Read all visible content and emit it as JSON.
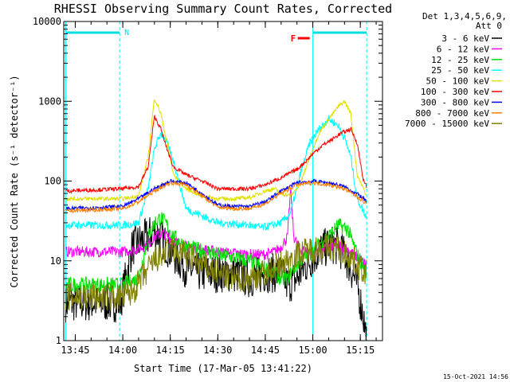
{
  "chart_data": {
    "type": "line",
    "title": "RHESSI Observing Summary Count Rates, Corrected",
    "xlabel": "Start Time (17-Mar-05 13:41:22)",
    "ylabel": "Corrected Count Rate (s⁻¹ detector⁻¹)",
    "yscale": "log",
    "ylim": [
      1,
      10000
    ],
    "y_ticks": [
      {
        "v": 1,
        "label": "1"
      },
      {
        "v": 10,
        "label": "10"
      },
      {
        "v": 100,
        "label": "100"
      },
      {
        "v": 1000,
        "label": "1000"
      },
      {
        "v": 10000,
        "label": "10000"
      }
    ],
    "xlim": [
      "13:41:22",
      "15:22:00"
    ],
    "x_ticks": [
      "13:45",
      "14:00",
      "14:15",
      "14:30",
      "14:45",
      "15:00",
      "15:15"
    ],
    "grid": false,
    "legend": {
      "header": [
        "Det 1,3,4,5,6,9,",
        "Att 0"
      ],
      "placement": "right-outside"
    },
    "series": [
      {
        "name": "3 - 6 keV",
        "color": "#000000",
        "x": [
          "13:42",
          "13:50",
          "13:59",
          "14:00",
          "14:03",
          "14:06",
          "14:08",
          "14:10",
          "14:12",
          "14:14",
          "14:16",
          "14:18",
          "14:20",
          "14:25",
          "14:30",
          "14:35",
          "14:40",
          "14:45",
          "14:50",
          "14:52",
          "14:55",
          "14:58",
          "15:00",
          "15:03",
          "15:06",
          "15:08",
          "15:10",
          "15:12",
          "15:14",
          "15:16",
          "15:17"
        ],
        "y": [
          3,
          3,
          3,
          4,
          15,
          18,
          20,
          24,
          20,
          15,
          12,
          10,
          8,
          7,
          7,
          7,
          6,
          7,
          7,
          5,
          6,
          9,
          11,
          14,
          16,
          15,
          12,
          8,
          5,
          2,
          1
        ]
      },
      {
        "name": "6 - 12 keV",
        "color": "#ff00ff",
        "x": [
          "13:42",
          "14:00",
          "14:05",
          "14:08",
          "14:10",
          "14:13",
          "14:16",
          "14:20",
          "14:30",
          "14:40",
          "14:45",
          "14:48",
          "14:50",
          "14:52",
          "14:53",
          "14:54",
          "14:56",
          "15:00",
          "15:05",
          "15:08",
          "15:11",
          "15:14",
          "15:17"
        ],
        "y": [
          13,
          13,
          14,
          16,
          20,
          22,
          18,
          15,
          13,
          12,
          12,
          13,
          15,
          20,
          80,
          20,
          14,
          13,
          15,
          16,
          14,
          11,
          9
        ]
      },
      {
        "name": "12 - 25 keV",
        "color": "#00e000",
        "x": [
          "13:42",
          "14:00",
          "14:05",
          "14:08",
          "14:10",
          "14:12",
          "14:14",
          "14:16",
          "14:20",
          "14:30",
          "14:40",
          "14:45",
          "14:48",
          "14:50",
          "14:52",
          "14:54",
          "14:56",
          "15:00",
          "15:03",
          "15:06",
          "15:08",
          "15:11",
          "15:14",
          "15:17"
        ],
        "y": [
          5,
          5,
          6,
          20,
          30,
          35,
          28,
          20,
          15,
          12,
          10,
          8,
          7,
          6,
          6,
          8,
          10,
          13,
          18,
          22,
          28,
          25,
          12,
          7
        ]
      },
      {
        "name": "25 - 50 keV",
        "color": "#00ffff",
        "x": [
          "13:42",
          "14:00",
          "14:05",
          "14:08",
          "14:10",
          "14:12",
          "14:14",
          "14:16",
          "14:20",
          "14:30",
          "14:40",
          "14:44",
          "14:47",
          "14:50",
          "14:53",
          "14:56",
          "14:59",
          "15:02",
          "15:05",
          "15:08",
          "15:10",
          "15:12",
          "15:14",
          "15:17"
        ],
        "y": [
          28,
          28,
          30,
          80,
          250,
          400,
          300,
          180,
          45,
          30,
          28,
          26,
          28,
          30,
          40,
          120,
          300,
          450,
          600,
          500,
          350,
          200,
          60,
          35
        ]
      },
      {
        "name": "50 - 100 keV",
        "color": "#e0e000",
        "x": [
          "13:42",
          "14:00",
          "14:05",
          "14:08",
          "14:10",
          "14:12",
          "14:14",
          "14:16",
          "14:20",
          "14:25",
          "14:30",
          "14:35",
          "14:40",
          "14:45",
          "14:48",
          "14:50",
          "14:53",
          "14:56",
          "14:59",
          "15:02",
          "15:05",
          "15:08",
          "15:10",
          "15:12",
          "15:14",
          "15:17"
        ],
        "y": [
          60,
          60,
          65,
          200,
          1100,
          700,
          300,
          120,
          80,
          65,
          60,
          60,
          62,
          75,
          80,
          70,
          65,
          90,
          200,
          400,
          600,
          850,
          1000,
          700,
          120,
          65
        ]
      },
      {
        "name": "100 - 300 keV",
        "color": "#ff0000",
        "x": [
          "13:42",
          "14:00",
          "14:05",
          "14:08",
          "14:10",
          "14:12",
          "14:14",
          "14:16",
          "14:20",
          "14:25",
          "14:30",
          "14:40",
          "14:45",
          "14:50",
          "14:55",
          "14:58",
          "15:00",
          "15:03",
          "15:06",
          "15:09",
          "15:12",
          "15:14",
          "15:16",
          "15:17"
        ],
        "y": [
          75,
          80,
          85,
          150,
          650,
          450,
          250,
          150,
          120,
          100,
          80,
          80,
          90,
          110,
          140,
          180,
          220,
          280,
          330,
          400,
          450,
          300,
          100,
          85
        ]
      },
      {
        "name": "300 - 800 keV",
        "color": "#0000ff",
        "x": [
          "13:42",
          "14:00",
          "14:05",
          "14:10",
          "14:15",
          "14:20",
          "14:25",
          "14:30",
          "14:35",
          "14:40",
          "14:45",
          "14:50",
          "14:55",
          "15:00",
          "15:05",
          "15:10",
          "15:15",
          "15:17"
        ],
        "y": [
          45,
          48,
          60,
          80,
          100,
          95,
          70,
          50,
          48,
          48,
          55,
          75,
          95,
          100,
          95,
          85,
          65,
          55
        ]
      },
      {
        "name": "800 - 7000 keV",
        "color": "#ff8000",
        "x": [
          "13:42",
          "14:00",
          "14:05",
          "14:10",
          "14:15",
          "14:20",
          "14:25",
          "14:30",
          "14:35",
          "14:40",
          "14:45",
          "14:50",
          "14:55",
          "15:00",
          "15:05",
          "15:10",
          "15:15",
          "15:17"
        ],
        "y": [
          42,
          45,
          55,
          75,
          95,
          90,
          65,
          47,
          45,
          45,
          52,
          70,
          90,
          95,
          90,
          80,
          60,
          52
        ]
      },
      {
        "name": "7000 - 15000 keV",
        "color": "#808000",
        "x": [
          "13:42",
          "14:00",
          "14:03",
          "14:06",
          "14:10",
          "14:15",
          "14:20",
          "14:25",
          "14:30",
          "14:35",
          "14:40",
          "14:45",
          "14:50",
          "14:55",
          "15:00",
          "15:05",
          "15:08",
          "15:11",
          "15:14",
          "15:17"
        ],
        "y": [
          3.5,
          3.5,
          4,
          6,
          10,
          14,
          12,
          9,
          7,
          6,
          6,
          7,
          9,
          12,
          14,
          15,
          14,
          12,
          9,
          7
        ]
      }
    ],
    "annotations": [
      {
        "label": "N",
        "color": "#00e0e0",
        "kind": "night-bar",
        "from": "13:42",
        "to": "13:59"
      },
      {
        "label": "",
        "color": "#00e0e0",
        "kind": "night-bar",
        "from": "15:00",
        "to": "15:17"
      },
      {
        "label": "F",
        "color": "#ff0000",
        "kind": "flare-flag",
        "at": "14:56"
      }
    ],
    "vlines": [
      {
        "at": "13:42",
        "style": "solid",
        "color": "#00ffff"
      },
      {
        "at": "13:59",
        "style": "dashed",
        "color": "#00ffff"
      },
      {
        "at": "15:00",
        "style": "solid",
        "color": "#00ffff"
      },
      {
        "at": "15:17",
        "style": "dashed",
        "color": "#00ffff"
      }
    ],
    "timestamp": "15-Oct-2021 14:56"
  }
}
